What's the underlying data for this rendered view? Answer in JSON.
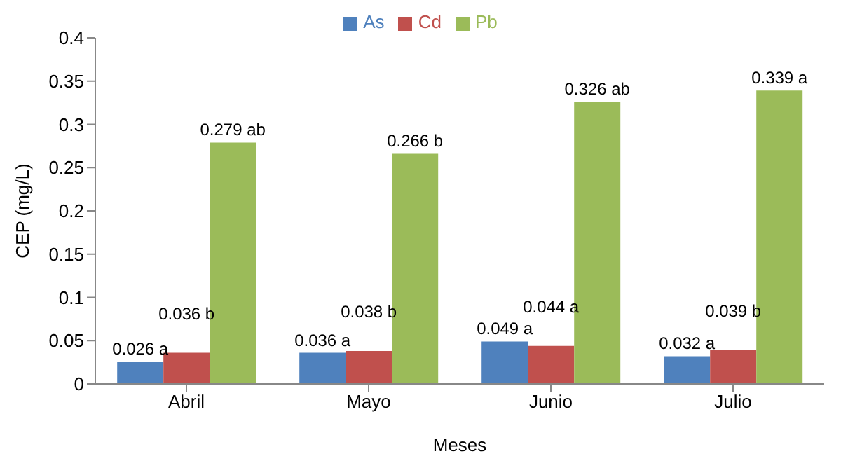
{
  "chart_data": {
    "type": "bar",
    "xlabel": "Meses",
    "ylabel": "CEP (mg/L)",
    "categories": [
      "Abril",
      "Mayo",
      "Junio",
      "Julio"
    ],
    "series": [
      {
        "name": "As",
        "color": "#4f81bd",
        "values": [
          0.026,
          0.036,
          0.049,
          0.032
        ],
        "value_labels": [
          "0.026 a",
          "0.036 a",
          "0.049 a",
          "0.032 a"
        ]
      },
      {
        "name": "Cd",
        "color": "#c0504d",
        "values": [
          0.036,
          0.038,
          0.044,
          0.039
        ],
        "value_labels": [
          "0.036 b",
          "0.038 b",
          "0.044 a",
          "0.039 b"
        ]
      },
      {
        "name": "Pb",
        "color": "#9bbb59",
        "values": [
          0.279,
          0.266,
          0.326,
          0.339
        ],
        "value_labels": [
          "0.279 ab",
          "0.266 b",
          "0.326 ab",
          "0.339 a"
        ]
      }
    ],
    "ylim": [
      0,
      0.4
    ],
    "yticks": [
      0,
      0.05,
      0.1,
      0.15,
      0.2,
      0.25,
      0.3,
      0.35,
      0.4
    ],
    "grid": false,
    "legend": "top"
  }
}
